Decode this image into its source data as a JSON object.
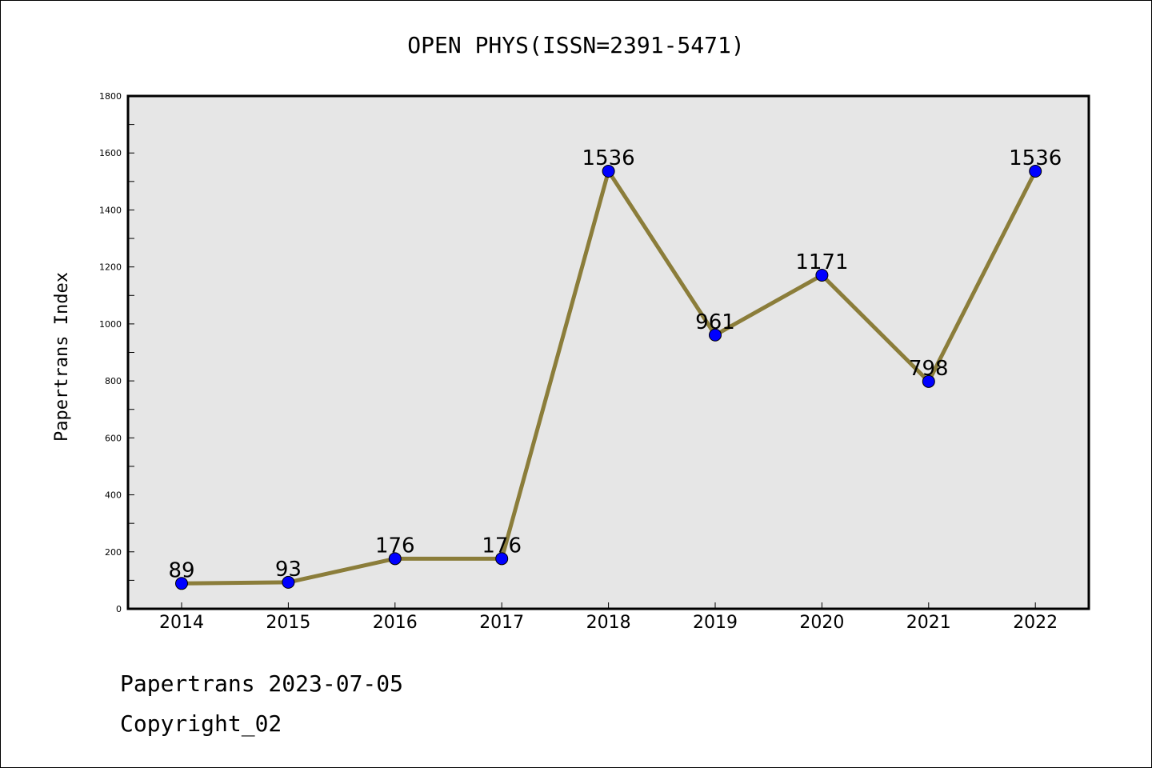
{
  "chart_data": {
    "type": "line",
    "title": "OPEN PHYS(ISSN=2391-5471)",
    "xlabel": "",
    "ylabel": "Papertrans Index",
    "categories": [
      "2014",
      "2015",
      "2016",
      "2017",
      "2018",
      "2019",
      "2020",
      "2021",
      "2022"
    ],
    "series": [
      {
        "values": [
          89,
          93,
          176,
          176,
          1536,
          961,
          1171,
          798,
          1536
        ]
      }
    ],
    "data_labels": [
      "89",
      "93",
      "176",
      "176",
      "1536",
      "961",
      "1171",
      "798",
      "1536"
    ],
    "ylim": [
      0,
      1800
    ],
    "yticks": [
      "0",
      "200",
      "400",
      "600",
      "800",
      "1000",
      "1200",
      "1400",
      "1600",
      "1800"
    ],
    "grid": false,
    "legend": "none",
    "colors": {
      "line": "#8b7d3a",
      "marker": "#0000ff",
      "plot_bg": "#e6e6e6"
    }
  },
  "footer": {
    "line1": "Papertrans 2023-07-05",
    "line2": "Copyright_02"
  }
}
